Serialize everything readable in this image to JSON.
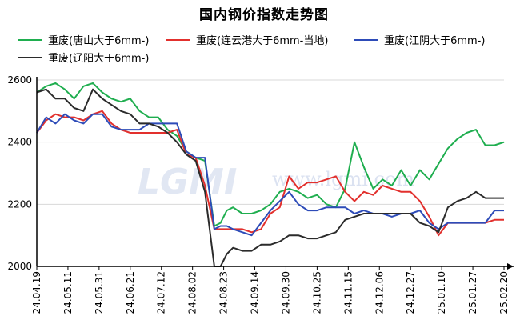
{
  "chart_data": {
    "type": "line",
    "title": "国内钢价指数走势图",
    "watermark": "LGMI",
    "watermark_url": "www.lgmi.com",
    "ylim": [
      2000,
      2600
    ],
    "yticks": [
      2000,
      2200,
      2400,
      2600
    ],
    "xticks": [
      "24.04.19",
      "24.05.11",
      "24.05.31",
      "24.06.21",
      "24.07.12",
      "24.08.02",
      "24.08.23",
      "24.09.14",
      "24.09.30",
      "24.10.25",
      "24.11.15",
      "24.12.06",
      "24.12.27",
      "25.01.10",
      "25.01.27",
      "25.02.20"
    ],
    "grid": "horizontal",
    "legend_position": "top",
    "series": [
      {
        "name": "重废(唐山大于6mm-)",
        "color": "#1fae4f",
        "points": [
          [
            0,
            2560
          ],
          [
            0.3,
            2580
          ],
          [
            0.6,
            2590
          ],
          [
            0.9,
            2570
          ],
          [
            1.2,
            2540
          ],
          [
            1.5,
            2580
          ],
          [
            1.8,
            2590
          ],
          [
            2.1,
            2560
          ],
          [
            2.4,
            2540
          ],
          [
            2.7,
            2530
          ],
          [
            3.0,
            2540
          ],
          [
            3.3,
            2500
          ],
          [
            3.6,
            2480
          ],
          [
            3.9,
            2480
          ],
          [
            4.2,
            2440
          ],
          [
            4.5,
            2420
          ],
          [
            4.8,
            2370
          ],
          [
            5.1,
            2350
          ],
          [
            5.4,
            2340
          ],
          [
            5.7,
            2130
          ],
          [
            5.9,
            2140
          ],
          [
            6.1,
            2180
          ],
          [
            6.3,
            2190
          ],
          [
            6.6,
            2170
          ],
          [
            6.9,
            2170
          ],
          [
            7.2,
            2180
          ],
          [
            7.5,
            2200
          ],
          [
            7.8,
            2240
          ],
          [
            8.1,
            2250
          ],
          [
            8.4,
            2240
          ],
          [
            8.7,
            2220
          ],
          [
            9.0,
            2230
          ],
          [
            9.3,
            2200
          ],
          [
            9.6,
            2190
          ],
          [
            9.9,
            2250
          ],
          [
            10.2,
            2400
          ],
          [
            10.5,
            2320
          ],
          [
            10.8,
            2250
          ],
          [
            11.1,
            2280
          ],
          [
            11.4,
            2260
          ],
          [
            11.7,
            2310
          ],
          [
            12.0,
            2260
          ],
          [
            12.3,
            2310
          ],
          [
            12.6,
            2280
          ],
          [
            12.9,
            2330
          ],
          [
            13.2,
            2380
          ],
          [
            13.5,
            2410
          ],
          [
            13.8,
            2430
          ],
          [
            14.1,
            2440
          ],
          [
            14.4,
            2390
          ],
          [
            14.7,
            2390
          ],
          [
            15.0,
            2400
          ]
        ]
      },
      {
        "name": "重废(连云港大于6mm-当地)",
        "color": "#e2302d",
        "points": [
          [
            0,
            2430
          ],
          [
            0.3,
            2470
          ],
          [
            0.6,
            2490
          ],
          [
            0.9,
            2480
          ],
          [
            1.2,
            2480
          ],
          [
            1.5,
            2470
          ],
          [
            1.8,
            2490
          ],
          [
            2.1,
            2500
          ],
          [
            2.4,
            2460
          ],
          [
            2.7,
            2440
          ],
          [
            3.0,
            2430
          ],
          [
            3.3,
            2430
          ],
          [
            3.6,
            2430
          ],
          [
            3.9,
            2430
          ],
          [
            4.2,
            2430
          ],
          [
            4.5,
            2440
          ],
          [
            4.8,
            2360
          ],
          [
            5.1,
            2350
          ],
          [
            5.4,
            2260
          ],
          [
            5.7,
            2120
          ],
          [
            5.9,
            2120
          ],
          [
            6.1,
            2120
          ],
          [
            6.3,
            2120
          ],
          [
            6.6,
            2120
          ],
          [
            6.9,
            2110
          ],
          [
            7.2,
            2120
          ],
          [
            7.5,
            2170
          ],
          [
            7.8,
            2190
          ],
          [
            8.1,
            2290
          ],
          [
            8.4,
            2250
          ],
          [
            8.7,
            2270
          ],
          [
            9.0,
            2270
          ],
          [
            9.3,
            2280
          ],
          [
            9.6,
            2290
          ],
          [
            9.9,
            2240
          ],
          [
            10.2,
            2210
          ],
          [
            10.5,
            2240
          ],
          [
            10.8,
            2230
          ],
          [
            11.1,
            2260
          ],
          [
            11.4,
            2250
          ],
          [
            11.7,
            2240
          ],
          [
            12.0,
            2240
          ],
          [
            12.3,
            2210
          ],
          [
            12.6,
            2160
          ],
          [
            12.9,
            2100
          ],
          [
            13.2,
            2140
          ],
          [
            13.5,
            2140
          ],
          [
            13.8,
            2140
          ],
          [
            14.1,
            2140
          ],
          [
            14.4,
            2140
          ],
          [
            14.7,
            2150
          ],
          [
            15.0,
            2150
          ]
        ]
      },
      {
        "name": "重废(江阴大于6mm-)",
        "color": "#2d4bb8",
        "points": [
          [
            0,
            2430
          ],
          [
            0.3,
            2480
          ],
          [
            0.6,
            2460
          ],
          [
            0.9,
            2490
          ],
          [
            1.2,
            2470
          ],
          [
            1.5,
            2460
          ],
          [
            1.8,
            2490
          ],
          [
            2.1,
            2490
          ],
          [
            2.4,
            2450
          ],
          [
            2.7,
            2440
          ],
          [
            3.0,
            2440
          ],
          [
            3.3,
            2440
          ],
          [
            3.6,
            2460
          ],
          [
            3.9,
            2460
          ],
          [
            4.2,
            2460
          ],
          [
            4.5,
            2460
          ],
          [
            4.8,
            2370
          ],
          [
            5.1,
            2350
          ],
          [
            5.4,
            2350
          ],
          [
            5.7,
            2120
          ],
          [
            5.9,
            2130
          ],
          [
            6.1,
            2130
          ],
          [
            6.3,
            2120
          ],
          [
            6.6,
            2110
          ],
          [
            6.9,
            2100
          ],
          [
            7.2,
            2140
          ],
          [
            7.5,
            2180
          ],
          [
            7.8,
            2210
          ],
          [
            8.1,
            2240
          ],
          [
            8.4,
            2200
          ],
          [
            8.7,
            2180
          ],
          [
            9.0,
            2180
          ],
          [
            9.3,
            2190
          ],
          [
            9.6,
            2190
          ],
          [
            9.9,
            2190
          ],
          [
            10.2,
            2170
          ],
          [
            10.5,
            2180
          ],
          [
            10.8,
            2170
          ],
          [
            11.1,
            2170
          ],
          [
            11.4,
            2160
          ],
          [
            11.7,
            2170
          ],
          [
            12.0,
            2170
          ],
          [
            12.3,
            2180
          ],
          [
            12.6,
            2140
          ],
          [
            12.9,
            2120
          ],
          [
            13.2,
            2140
          ],
          [
            13.5,
            2140
          ],
          [
            13.8,
            2140
          ],
          [
            14.1,
            2140
          ],
          [
            14.4,
            2140
          ],
          [
            14.7,
            2180
          ],
          [
            15.0,
            2180
          ]
        ]
      },
      {
        "name": "重废(辽阳大于6mm-)",
        "color": "#2b2b2b",
        "points": [
          [
            0,
            2560
          ],
          [
            0.3,
            2570
          ],
          [
            0.6,
            2540
          ],
          [
            0.9,
            2540
          ],
          [
            1.2,
            2510
          ],
          [
            1.5,
            2500
          ],
          [
            1.8,
            2570
          ],
          [
            2.1,
            2540
          ],
          [
            2.4,
            2520
          ],
          [
            2.7,
            2500
          ],
          [
            3.0,
            2490
          ],
          [
            3.3,
            2460
          ],
          [
            3.6,
            2460
          ],
          [
            3.9,
            2450
          ],
          [
            4.2,
            2430
          ],
          [
            4.5,
            2400
          ],
          [
            4.8,
            2360
          ],
          [
            5.1,
            2340
          ],
          [
            5.4,
            2240
          ],
          [
            5.7,
            2000
          ],
          [
            5.9,
            2000
          ],
          [
            6.1,
            2040
          ],
          [
            6.3,
            2060
          ],
          [
            6.6,
            2050
          ],
          [
            6.9,
            2050
          ],
          [
            7.2,
            2070
          ],
          [
            7.5,
            2070
          ],
          [
            7.8,
            2080
          ],
          [
            8.1,
            2100
          ],
          [
            8.4,
            2100
          ],
          [
            8.7,
            2090
          ],
          [
            9.0,
            2090
          ],
          [
            9.3,
            2100
          ],
          [
            9.6,
            2110
          ],
          [
            9.9,
            2150
          ],
          [
            10.2,
            2160
          ],
          [
            10.5,
            2170
          ],
          [
            10.8,
            2170
          ],
          [
            11.1,
            2170
          ],
          [
            11.4,
            2170
          ],
          [
            11.7,
            2170
          ],
          [
            12.0,
            2170
          ],
          [
            12.3,
            2140
          ],
          [
            12.6,
            2130
          ],
          [
            12.9,
            2110
          ],
          [
            13.2,
            2190
          ],
          [
            13.5,
            2210
          ],
          [
            13.8,
            2220
          ],
          [
            14.1,
            2240
          ],
          [
            14.4,
            2220
          ],
          [
            14.7,
            2220
          ],
          [
            15.0,
            2220
          ]
        ]
      }
    ]
  }
}
